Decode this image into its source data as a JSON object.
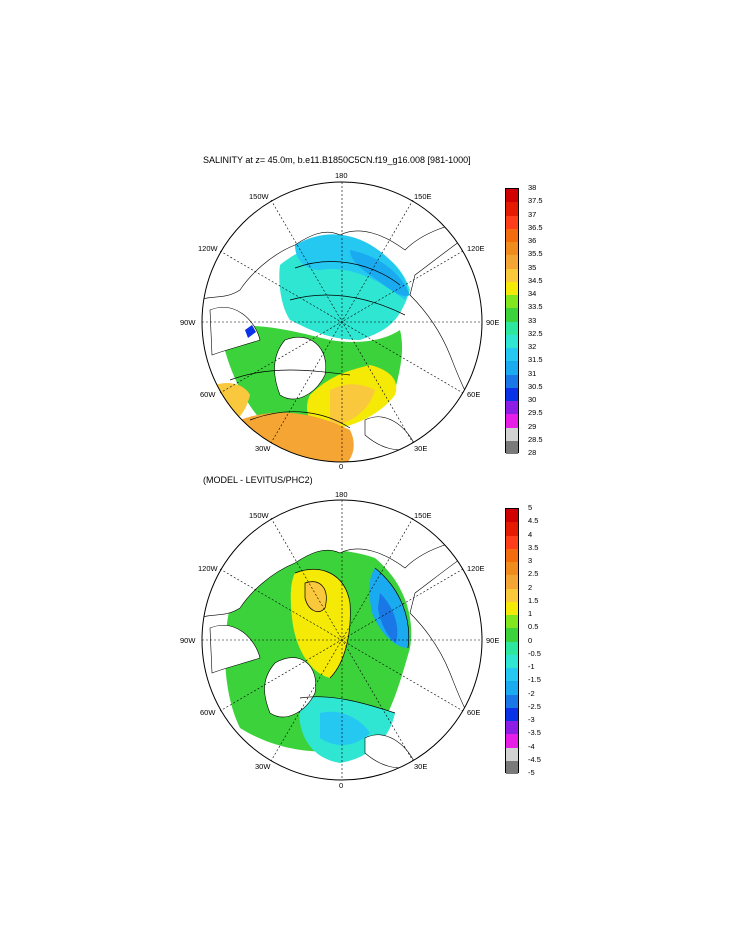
{
  "panel1": {
    "title": "SALINITY at z=  45.0m, b.e11.B1850C5CN.f19_g16.008 [981-1000]",
    "lon_labels": {
      "n": "180",
      "s": "0",
      "e": "90E",
      "w": "90W",
      "nw1": "150W",
      "ne1": "150E",
      "nw2": "120W",
      "ne2": "120E",
      "sw2": "60W",
      "se2": "60E",
      "sw1": "30W",
      "se1": "30E"
    },
    "colorbar": {
      "labels": [
        "38",
        "37.5",
        "37",
        "36.5",
        "36",
        "35.5",
        "35",
        "34.5",
        "34",
        "33.5",
        "33",
        "32.5",
        "32",
        "31.5",
        "31",
        "30.5",
        "30",
        "29.5",
        "29",
        "28.5",
        "28"
      ],
      "colors": [
        "#d10000",
        "#e61a00",
        "#ff3d1a",
        "#f26b0d",
        "#f08c1e",
        "#f5a533",
        "#fac83c",
        "#f5ea05",
        "#82e61e",
        "#3cd23c",
        "#2de6a0",
        "#2ee6d2",
        "#24c8f0",
        "#1aaaf0",
        "#1a78e6",
        "#0a32e6",
        "#8c1ee6",
        "#e61ee6",
        "#d2d2d2",
        "#7a7a7a"
      ]
    }
  },
  "panel2": {
    "title": "(MODEL - LEVITUS/PHC2)",
    "lon_labels": {
      "n": "180",
      "s": "0",
      "e": "90E",
      "w": "90W",
      "nw1": "150W",
      "ne1": "150E",
      "nw2": "120W",
      "ne2": "120E",
      "sw2": "60W",
      "se2": "60E",
      "sw1": "30W",
      "se1": "30E"
    },
    "colorbar": {
      "labels": [
        "5",
        "4.5",
        "4",
        "3.5",
        "3",
        "2.5",
        "2",
        "1.5",
        "1",
        "0.5",
        "0",
        "-0.5",
        "-1",
        "-1.5",
        "-2",
        "-2.5",
        "-3",
        "-3.5",
        "-4",
        "-4.5",
        "-5"
      ],
      "colors": [
        "#d10000",
        "#e61a00",
        "#ff3d1a",
        "#f26b0d",
        "#f08c1e",
        "#f5a533",
        "#fac83c",
        "#f5ea05",
        "#82e61e",
        "#3cd23c",
        "#2de6a0",
        "#2ee6d2",
        "#24c8f0",
        "#1aaaf0",
        "#1a78e6",
        "#0a32e6",
        "#8c1ee6",
        "#e61ee6",
        "#d2d2d2",
        "#7a7a7a"
      ]
    }
  }
}
